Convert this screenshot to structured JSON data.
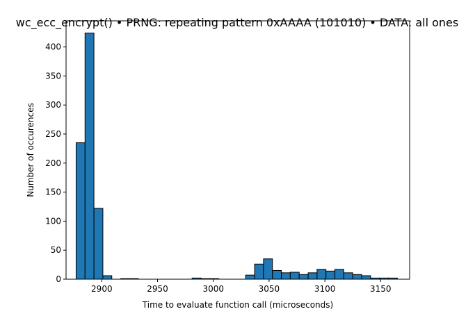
{
  "chart_data": {
    "type": "bar",
    "title": "wc_ecc_encrypt() • PRNG: repeating pattern 0xAAAA (101010) • DATA: all ones",
    "xlabel": "Time to evaluate function call (microseconds)",
    "ylabel": "Number of occurences",
    "xlim": [
      2868,
      2176
    ],
    "ylim": [
      0,
      445
    ],
    "grid": false,
    "x_ticks": [
      2900,
      2950,
      3000,
      3050,
      3100,
      3150
    ],
    "y_ticks": [
      0,
      50,
      100,
      150,
      200,
      250,
      300,
      350,
      400
    ],
    "bin_edges": [
      2877,
      2885,
      2893,
      2901,
      2909,
      2917,
      2925,
      2933,
      2941,
      2949,
      2957,
      2965,
      2973,
      2981,
      2989,
      2997,
      3005,
      3013,
      3021,
      3029,
      3037,
      3045,
      3053,
      3061,
      3069,
      3077,
      3085,
      3093,
      3101,
      3109,
      3117,
      3125,
      3133,
      3141,
      3149,
      3157,
      3165
    ],
    "values": [
      235,
      424,
      122,
      6,
      0,
      1,
      1,
      0,
      0,
      0,
      0,
      0,
      0,
      2,
      1,
      1,
      0,
      0,
      0,
      7,
      26,
      35,
      15,
      11,
      12,
      8,
      11,
      17,
      14,
      17,
      11,
      8,
      6,
      2,
      2,
      2
    ],
    "bar_color": "#1f77b4",
    "edge_color": "#000000"
  }
}
